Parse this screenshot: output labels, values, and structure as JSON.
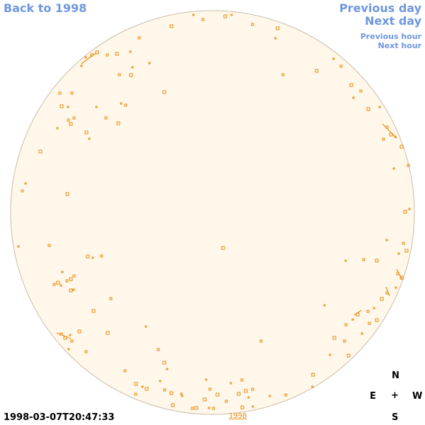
{
  "nav": {
    "back": "Back to 1998",
    "previous_day": "Previous day",
    "next_day": "Next day",
    "previous_hour": "Previous hour",
    "next_hour": "Next hour"
  },
  "compass": {
    "north": "N",
    "east": "E",
    "center": "+",
    "west": "W",
    "south": "S"
  },
  "timestamp": "1998-03-07T20:47:33",
  "year_link": "1998",
  "colors": {
    "disk_fill": "#fff8ea",
    "disk_stroke": "#c8bcaa",
    "contour": "#e98a0e",
    "link": "#6f97df"
  }
}
